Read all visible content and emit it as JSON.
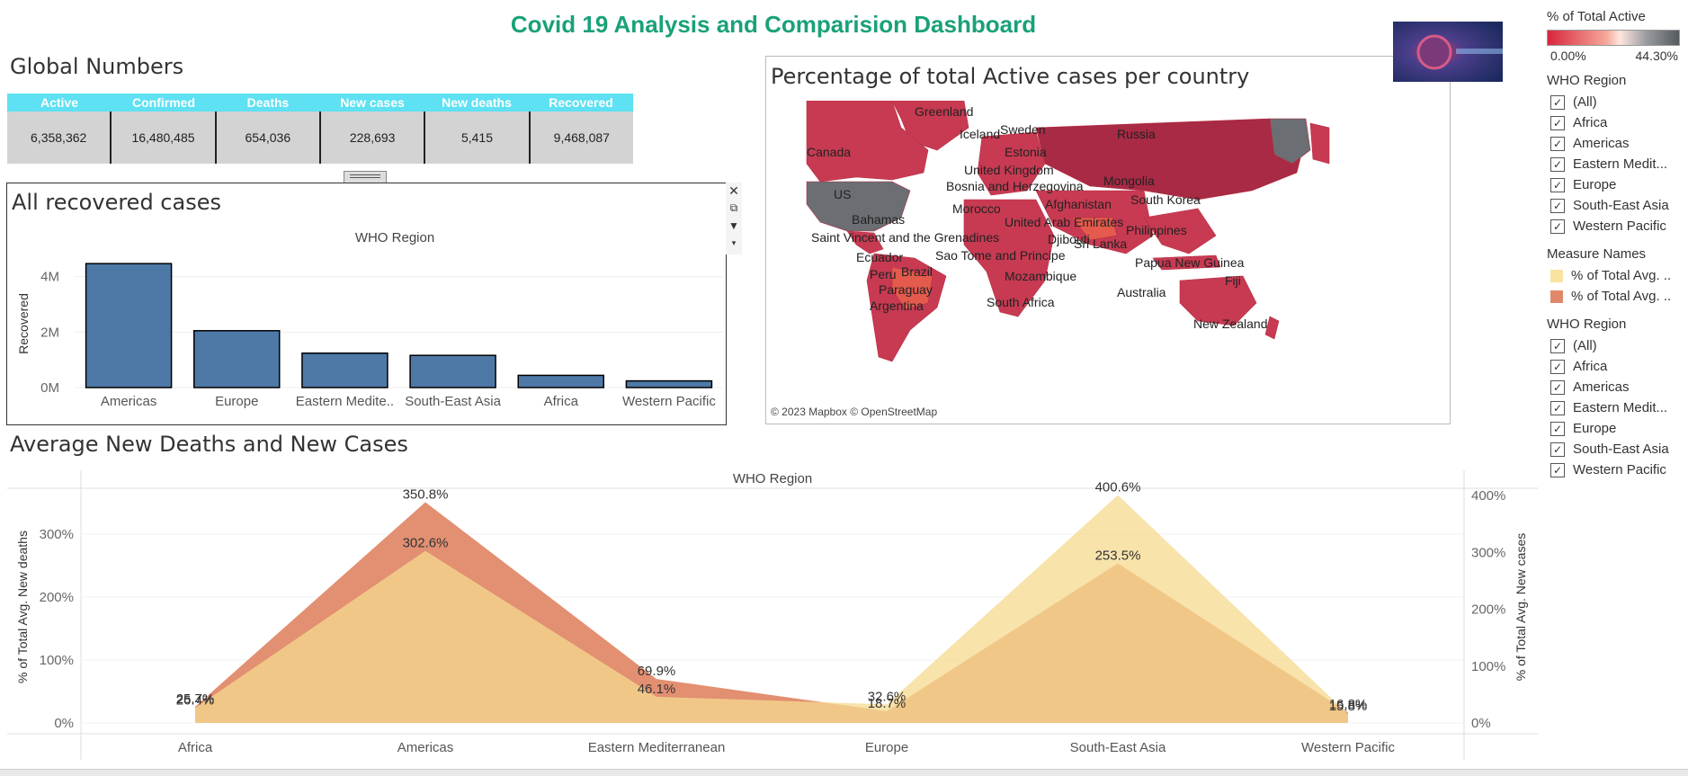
{
  "dashboard": {
    "title": "Covid 19 Analysis and Comparision Dashboard"
  },
  "global_numbers": {
    "title": "Global Numbers",
    "headers": [
      "Active",
      "Confirmed",
      "Deaths",
      "New cases",
      "New deaths",
      "Recovered"
    ],
    "values": [
      "6,358,362",
      "16,480,485",
      "654,036",
      "228,693",
      "5,415",
      "9,468,087"
    ]
  },
  "recovered_panel": {
    "title": "All recovered cases"
  },
  "map_panel": {
    "title": "Percentage of total Active cases per country",
    "attribution": "© 2023 Mapbox © OpenStreetMap",
    "labels": [
      "Greenland",
      "Iceland",
      "Sweden",
      "Russia",
      "Canada",
      "Estonia",
      "United Kingdom",
      "Bosnia and Herzegovina",
      "Mongolia",
      "US",
      "Morocco",
      "Afghanistan",
      "South Korea",
      "United Arab Emirates",
      "Bahamas",
      "Djibouti",
      "Philippines",
      "Saint Vincent and the Grenadines",
      "Sri Lanka",
      "Sao Tome and Principe",
      "Ecuador",
      "Papua New Guinea",
      "Brazil",
      "Peru",
      "Mozambique",
      "Fiji",
      "Paraguay",
      "Australia",
      "Argentina",
      "South Africa",
      "New Zealand"
    ]
  },
  "area_panel": {
    "title": "Average New Deaths and New Cases"
  },
  "chart_data": [
    {
      "type": "bar",
      "title": "All recovered cases",
      "xlabel": "WHO Region",
      "ylabel": "Recovered",
      "categories": [
        "Americas",
        "Europe",
        "Eastern Medite..",
        "South-East Asia",
        "Africa",
        "Western Pacific"
      ],
      "values": [
        4470000,
        2050000,
        1240000,
        1160000,
        440000,
        240000
      ],
      "yticks": [
        "0M",
        "2M",
        "4M"
      ],
      "ylim": [
        0,
        4800000
      ],
      "color": "#4e79a7"
    },
    {
      "type": "map",
      "title": "Percentage of total Active cases per country",
      "legend_title": "% of Total Active",
      "range_labels": [
        "0.00%",
        "44.30%"
      ],
      "colors": [
        "#d7263d",
        "#f3b1a6",
        "#6b6e73"
      ]
    },
    {
      "type": "area",
      "title": "Average New Deaths and New Cases",
      "xlabel": "WHO Region",
      "ylabel_left": "% of Total Avg. New deaths",
      "ylabel_right": "% of Total Avg. New cases",
      "categories": [
        "Africa",
        "Americas",
        "Eastern Mediterranean",
        "Europe",
        "South-East Asia",
        "Western Pacific"
      ],
      "left_ticks": [
        "0%",
        "100%",
        "200%",
        "300%"
      ],
      "right_ticks": [
        "0%",
        "100%",
        "200%",
        "300%",
        "400%"
      ],
      "ylim": [
        0,
        350
      ],
      "series": [
        {
          "name": "% of Total Avg. New deaths",
          "color": "#e0896a",
          "values": [
            25.7,
            350.8,
            69.9,
            18.7,
            253.5,
            16.8
          ],
          "labels": [
            "25.7%",
            "350.8%",
            "69.9%",
            "18.7%",
            "253.5%",
            "16.8%"
          ]
        },
        {
          "name": "% of Total Avg. New cases",
          "color": "#f5d98f",
          "values": [
            26.4,
            302.6,
            46.1,
            32.6,
            400.6,
            15.8
          ],
          "labels": [
            "26.4%",
            "302.6%",
            "46.1%",
            "32.6%",
            "400.6%",
            "15.8%"
          ]
        }
      ]
    }
  ],
  "sidebar": {
    "active_legend_title": "% of Total Active",
    "active_min": "0.00%",
    "active_max": "44.30%",
    "who_region_title": "WHO Region",
    "region_items": [
      "(All)",
      "Africa",
      "Americas",
      "Eastern Medit...",
      "Europe",
      "South-East Asia",
      "Western Pacific"
    ],
    "measure_title": "Measure Names",
    "measure_items": [
      {
        "label": "% of Total Avg. ..",
        "color": "#f9e3a0"
      },
      {
        "label": "% of Total Avg. ..",
        "color": "#e0896a"
      }
    ],
    "who_region_title_2": "WHO Region",
    "check_glyph": "✓"
  }
}
